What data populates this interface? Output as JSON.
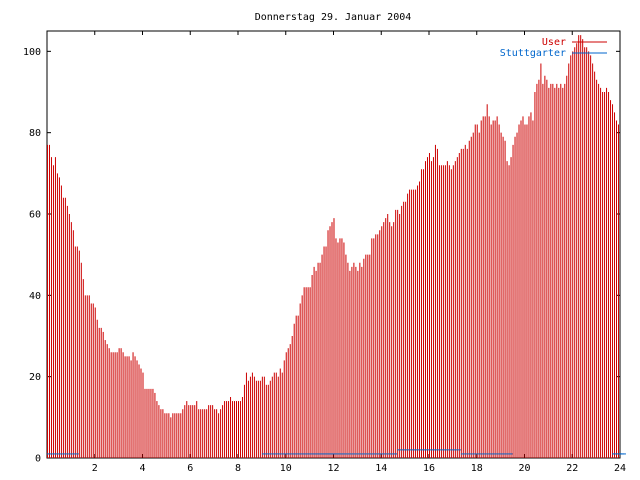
{
  "chart_data": {
    "type": "bar",
    "title": "Donnerstag 29. Januar 2004",
    "xlabel": "",
    "ylabel": "",
    "xlim": [
      0,
      24
    ],
    "ylim": [
      0,
      105
    ],
    "grid": false,
    "legend_position": "top-right",
    "x_ticks": [
      "2",
      "4",
      "6",
      "8",
      "10",
      "12",
      "14",
      "16",
      "18",
      "20",
      "22",
      "24"
    ],
    "y_ticks": [
      "0",
      "20",
      "40",
      "60",
      "80",
      "100"
    ],
    "x_tick_values": [
      2,
      4,
      6,
      8,
      10,
      12,
      14,
      16,
      18,
      20,
      22,
      24
    ],
    "y_tick_values": [
      0,
      20,
      40,
      60,
      80,
      100
    ],
    "bar_step_hours": 0.08333,
    "series": [
      {
        "name": "User",
        "color": "#cc0000",
        "values": [
          77,
          77,
          74,
          72,
          74,
          70,
          69,
          67,
          64,
          64,
          62,
          60,
          58,
          56,
          52,
          52,
          51,
          48,
          44,
          40,
          40,
          40,
          38,
          38,
          37,
          34,
          32,
          32,
          31,
          29,
          28,
          27,
          26,
          26,
          26,
          26,
          27,
          27,
          26,
          25,
          25,
          25,
          24,
          26,
          25,
          24,
          23,
          22,
          21,
          17,
          17,
          17,
          17,
          17,
          16,
          14,
          13,
          12,
          12,
          11,
          11,
          11,
          10,
          11,
          11,
          11,
          11,
          11,
          12,
          13,
          14,
          13,
          13,
          13,
          13,
          14,
          12,
          12,
          12,
          12,
          12,
          13,
          13,
          13,
          12,
          12,
          11,
          12,
          13,
          14,
          14,
          14,
          15,
          14,
          14,
          14,
          14,
          14,
          15,
          18,
          21,
          19,
          20,
          21,
          20,
          19,
          19,
          19,
          20,
          20,
          18,
          18,
          19,
          20,
          21,
          21,
          20,
          22,
          21,
          24,
          26,
          27,
          28,
          30,
          33,
          35,
          35,
          38,
          40,
          42,
          42,
          42,
          42,
          45,
          47,
          46,
          48,
          48,
          50,
          52,
          52,
          56,
          57,
          58,
          59,
          54,
          53,
          54,
          54,
          53,
          50,
          48,
          46,
          47,
          48,
          47,
          46,
          48,
          47,
          49,
          50,
          50,
          50,
          54,
          54,
          55,
          55,
          56,
          57,
          58,
          59,
          60,
          58,
          57,
          58,
          61,
          61,
          60,
          62,
          63,
          63,
          65,
          66,
          66,
          66,
          66,
          67,
          68,
          71,
          71,
          73,
          74,
          75,
          73,
          74,
          77,
          76,
          72,
          72,
          72,
          72,
          73,
          72,
          71,
          72,
          73,
          74,
          75,
          76,
          76,
          77,
          76,
          78,
          79,
          80,
          82,
          82,
          80,
          83,
          84,
          84,
          87,
          84,
          82,
          83,
          83,
          84,
          82,
          80,
          79,
          78,
          73,
          72,
          74,
          77,
          79,
          80,
          82,
          83,
          84,
          82,
          82,
          84,
          85,
          83,
          90,
          92,
          93,
          97,
          92,
          94,
          93,
          91,
          92,
          92,
          91,
          92,
          91,
          92,
          91,
          92,
          94,
          97,
          99,
          100,
          101,
          102,
          104,
          104,
          103,
          101,
          101,
          100,
          99,
          97,
          95,
          93,
          92,
          91,
          90,
          90,
          91,
          90,
          88,
          87,
          85,
          83,
          82,
          80,
          79,
          77,
          76
        ]
      },
      {
        "name": "Stuttgarter",
        "color": "#0066cc",
        "values": [
          1,
          1,
          1,
          1,
          1,
          1,
          1,
          1,
          1,
          1,
          1,
          1,
          1,
          1,
          1,
          1,
          0,
          0,
          0,
          0,
          0,
          0,
          0,
          0,
          0,
          0,
          0,
          0,
          0,
          0,
          0,
          0,
          0,
          0,
          0,
          0,
          0,
          0,
          0,
          0,
          0,
          0,
          0,
          0,
          0,
          0,
          0,
          0,
          0,
          0,
          0,
          0,
          0,
          0,
          0,
          0,
          0,
          0,
          0,
          0,
          0,
          0,
          0,
          0,
          0,
          0,
          0,
          0,
          0,
          0,
          0,
          0,
          0,
          0,
          0,
          0,
          0,
          0,
          0,
          0,
          0,
          0,
          0,
          0,
          0,
          0,
          0,
          0,
          0,
          0,
          0,
          0,
          0,
          0,
          0,
          0,
          0,
          0,
          0,
          0,
          0,
          0,
          0,
          0,
          0,
          0,
          0,
          0,
          1,
          1,
          1,
          1,
          1,
          1,
          1,
          1,
          1,
          1,
          1,
          1,
          1,
          1,
          1,
          1,
          1,
          1,
          1,
          1,
          1,
          1,
          1,
          1,
          1,
          1,
          1,
          1,
          1,
          1,
          1,
          1,
          1,
          1,
          1,
          1,
          1,
          1,
          1,
          1,
          1,
          1,
          1,
          1,
          1,
          1,
          1,
          1,
          1,
          1,
          1,
          1,
          1,
          1,
          1,
          1,
          1,
          1,
          1,
          1,
          1,
          1,
          1,
          1,
          1,
          1,
          1,
          1,
          2,
          2,
          2,
          2,
          2,
          2,
          2,
          2,
          2,
          2,
          2,
          2,
          2,
          2,
          2,
          2,
          2,
          2,
          2,
          2,
          2,
          2,
          2,
          2,
          2,
          2,
          2,
          2,
          2,
          2,
          2,
          2,
          1,
          1,
          1,
          1,
          1,
          1,
          1,
          1,
          1,
          1,
          1,
          1,
          1,
          1,
          1,
          1,
          1,
          1,
          1,
          1,
          1,
          1,
          1,
          1,
          1,
          1,
          0,
          0,
          0,
          0,
          0,
          0,
          0,
          0,
          0,
          0,
          0,
          0,
          0,
          0,
          0,
          0,
          0,
          0,
          0,
          0,
          0,
          0,
          0,
          0,
          0,
          0,
          0,
          0,
          0,
          0,
          0,
          0,
          0,
          0,
          0,
          0,
          0,
          0,
          0,
          0,
          0,
          0,
          0,
          0,
          0,
          0,
          0,
          0,
          0,
          0,
          1,
          1,
          1,
          1,
          1,
          1,
          1,
          1
        ]
      }
    ]
  }
}
